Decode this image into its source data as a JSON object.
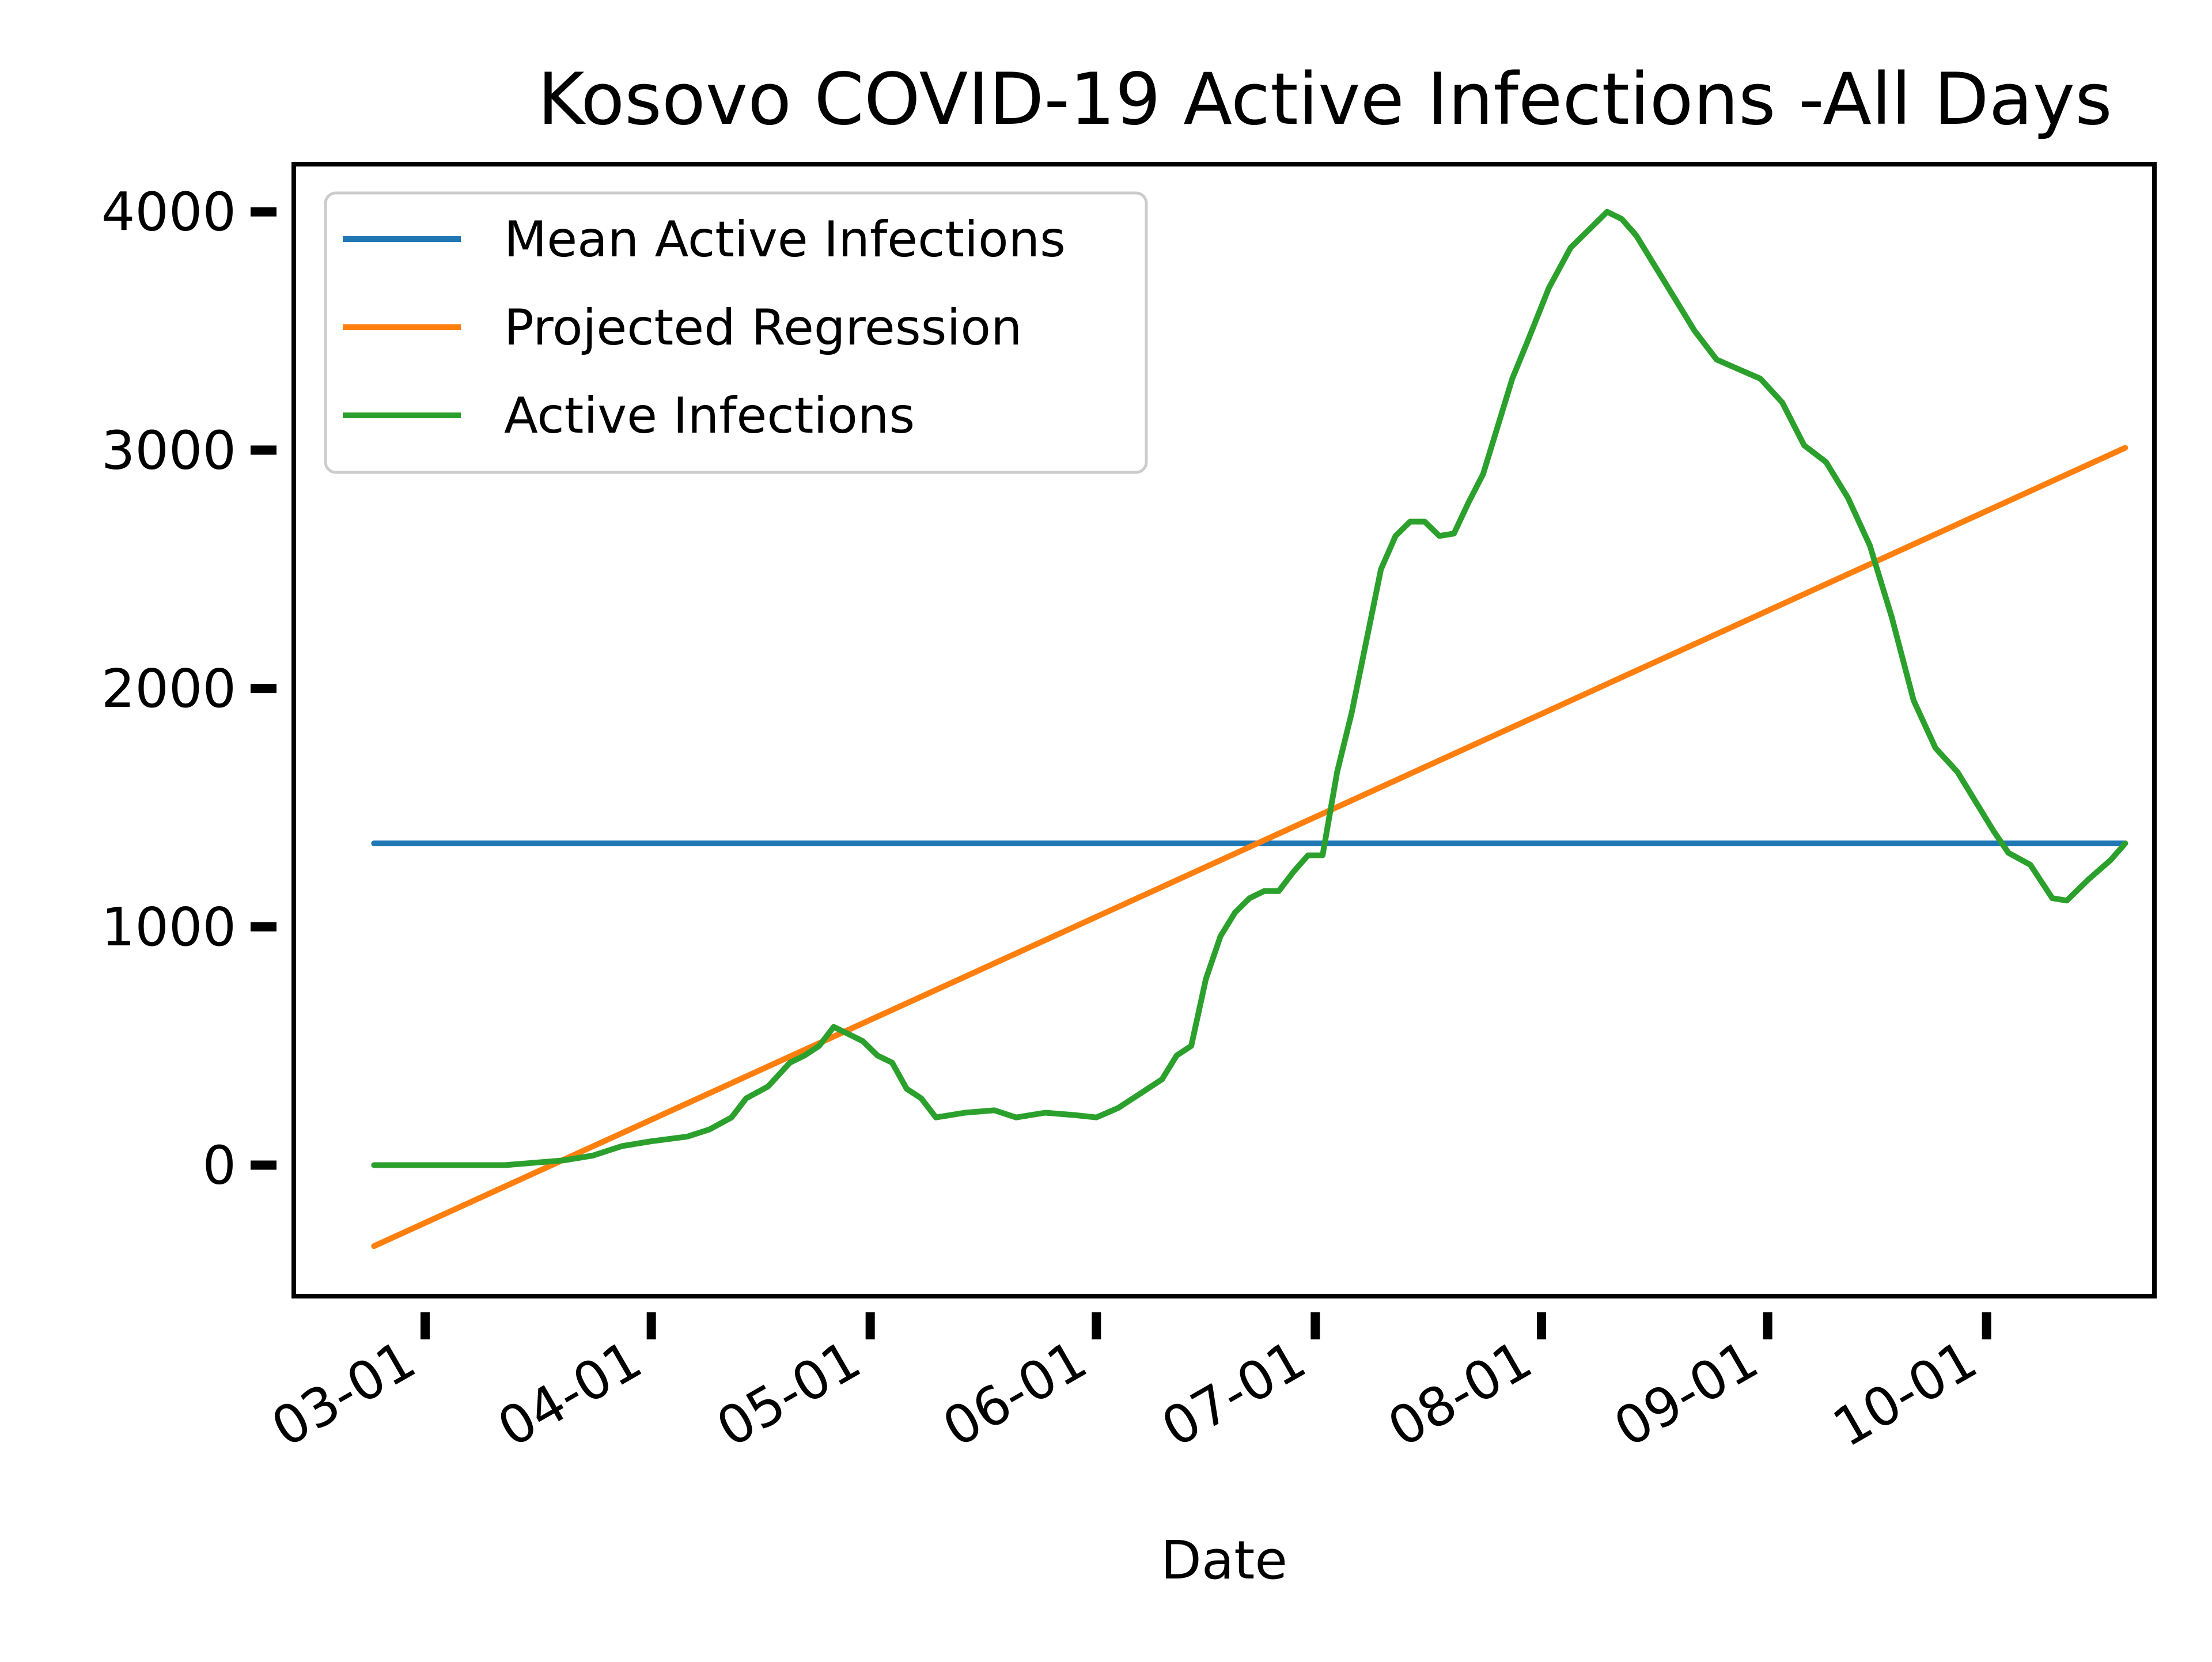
{
  "chart_data": {
    "type": "line",
    "title": "Kosovo COVID-19 Active Infections -All Days",
    "xlabel": "Date",
    "ylabel": "",
    "x_ticks": [
      "03-01",
      "04-01",
      "05-01",
      "06-01",
      "07-01",
      "08-01",
      "09-01",
      "10-01"
    ],
    "y_ticks": [
      0,
      1000,
      2000,
      3000,
      4000
    ],
    "xlim": [
      "2020-02-12",
      "2020-10-24"
    ],
    "ylim": [
      -550,
      4200
    ],
    "grid": false,
    "legend_position": "top-left",
    "series": [
      {
        "name": "Mean Active Infections",
        "color": "#1f77b4",
        "points": [
          [
            "2020-02-23",
            1350
          ],
          [
            "2020-10-20",
            1350
          ]
        ]
      },
      {
        "name": "Projected Regression",
        "color": "#ff7f0e",
        "points": [
          [
            "2020-02-23",
            -340
          ],
          [
            "2020-10-20",
            3010
          ]
        ]
      },
      {
        "name": "Active Infections",
        "color": "#2ca02c",
        "points": [
          [
            "2020-02-23",
            0
          ],
          [
            "2020-03-05",
            0
          ],
          [
            "2020-03-12",
            0
          ],
          [
            "2020-03-16",
            10
          ],
          [
            "2020-03-20",
            20
          ],
          [
            "2020-03-24",
            40
          ],
          [
            "2020-03-28",
            80
          ],
          [
            "2020-04-01",
            100
          ],
          [
            "2020-04-06",
            120
          ],
          [
            "2020-04-09",
            150
          ],
          [
            "2020-04-12",
            200
          ],
          [
            "2020-04-14",
            280
          ],
          [
            "2020-04-17",
            330
          ],
          [
            "2020-04-20",
            430
          ],
          [
            "2020-04-22",
            460
          ],
          [
            "2020-04-24",
            500
          ],
          [
            "2020-04-26",
            580
          ],
          [
            "2020-04-28",
            550
          ],
          [
            "2020-04-30",
            520
          ],
          [
            "2020-05-02",
            460
          ],
          [
            "2020-05-04",
            430
          ],
          [
            "2020-05-06",
            320
          ],
          [
            "2020-05-08",
            280
          ],
          [
            "2020-05-10",
            200
          ],
          [
            "2020-05-14",
            220
          ],
          [
            "2020-05-18",
            230
          ],
          [
            "2020-05-21",
            200
          ],
          [
            "2020-05-25",
            220
          ],
          [
            "2020-05-29",
            210
          ],
          [
            "2020-06-01",
            200
          ],
          [
            "2020-06-04",
            240
          ],
          [
            "2020-06-07",
            300
          ],
          [
            "2020-06-10",
            360
          ],
          [
            "2020-06-12",
            460
          ],
          [
            "2020-06-14",
            500
          ],
          [
            "2020-06-16",
            780
          ],
          [
            "2020-06-18",
            960
          ],
          [
            "2020-06-20",
            1060
          ],
          [
            "2020-06-22",
            1120
          ],
          [
            "2020-06-24",
            1150
          ],
          [
            "2020-06-26",
            1150
          ],
          [
            "2020-06-28",
            1230
          ],
          [
            "2020-06-30",
            1300
          ],
          [
            "2020-07-02",
            1300
          ],
          [
            "2020-07-04",
            1650
          ],
          [
            "2020-07-06",
            1900
          ],
          [
            "2020-07-08",
            2200
          ],
          [
            "2020-07-10",
            2500
          ],
          [
            "2020-07-12",
            2640
          ],
          [
            "2020-07-14",
            2700
          ],
          [
            "2020-07-16",
            2700
          ],
          [
            "2020-07-18",
            2640
          ],
          [
            "2020-07-20",
            2650
          ],
          [
            "2020-07-22",
            2780
          ],
          [
            "2020-07-24",
            2900
          ],
          [
            "2020-07-26",
            3100
          ],
          [
            "2020-07-28",
            3300
          ],
          [
            "2020-07-30",
            3450
          ],
          [
            "2020-08-02",
            3680
          ],
          [
            "2020-08-05",
            3850
          ],
          [
            "2020-08-08",
            3940
          ],
          [
            "2020-08-10",
            4000
          ],
          [
            "2020-08-12",
            3970
          ],
          [
            "2020-08-14",
            3900
          ],
          [
            "2020-08-16",
            3800
          ],
          [
            "2020-08-19",
            3650
          ],
          [
            "2020-08-22",
            3500
          ],
          [
            "2020-08-25",
            3380
          ],
          [
            "2020-08-28",
            3340
          ],
          [
            "2020-08-31",
            3300
          ],
          [
            "2020-09-03",
            3200
          ],
          [
            "2020-09-06",
            3020
          ],
          [
            "2020-09-09",
            2950
          ],
          [
            "2020-09-12",
            2800
          ],
          [
            "2020-09-15",
            2600
          ],
          [
            "2020-09-18",
            2300
          ],
          [
            "2020-09-21",
            1950
          ],
          [
            "2020-09-24",
            1750
          ],
          [
            "2020-09-27",
            1650
          ],
          [
            "2020-09-30",
            1500
          ],
          [
            "2020-10-02",
            1400
          ],
          [
            "2020-10-04",
            1310
          ],
          [
            "2020-10-07",
            1260
          ],
          [
            "2020-10-10",
            1120
          ],
          [
            "2020-10-12",
            1110
          ],
          [
            "2020-10-15",
            1200
          ],
          [
            "2020-10-18",
            1280
          ],
          [
            "2020-10-20",
            1350
          ]
        ]
      }
    ]
  }
}
